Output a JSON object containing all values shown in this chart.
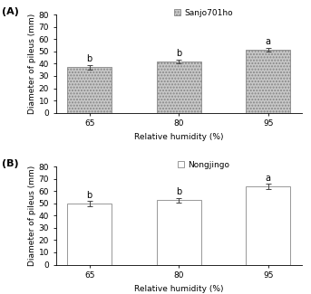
{
  "panel_A": {
    "label": "(A)",
    "legend_label": "Sanjo701ho",
    "categories": [
      "65",
      "80",
      "95"
    ],
    "values": [
      37.0,
      42.0,
      51.5
    ],
    "errors": [
      1.8,
      1.5,
      1.5
    ],
    "sig_labels": [
      "b",
      "b",
      "a"
    ],
    "bar_color": "#c8c8c8",
    "bar_hatch": ".....",
    "ylabel": "Diameter of pileus (mm)",
    "xlabel": "Relative humidity (%)",
    "ylim": [
      0,
      80
    ],
    "yticks": [
      0,
      10,
      20,
      30,
      40,
      50,
      60,
      70,
      80
    ]
  },
  "panel_B": {
    "label": "(B)",
    "legend_label": "Nongjingo",
    "categories": [
      "65",
      "80",
      "95"
    ],
    "values": [
      49.5,
      52.5,
      64.0
    ],
    "errors": [
      2.2,
      1.8,
      2.0
    ],
    "sig_labels": [
      "b",
      "b",
      "a"
    ],
    "bar_color": "#ffffff",
    "bar_hatch": "",
    "ylabel": "Diameter of pileus (mm)",
    "xlabel": "Relative humidity (%)",
    "ylim": [
      0,
      80
    ],
    "yticks": [
      0,
      10,
      20,
      30,
      40,
      50,
      60,
      70,
      80
    ]
  },
  "fig_background": "#ffffff",
  "bar_edgecolor": "#888888",
  "error_color": "#444444",
  "fontsize_label": 6.5,
  "fontsize_tick": 6.5,
  "fontsize_sig": 7,
  "fontsize_legend": 6.5,
  "fontsize_panel": 8,
  "bar_width": 0.5
}
